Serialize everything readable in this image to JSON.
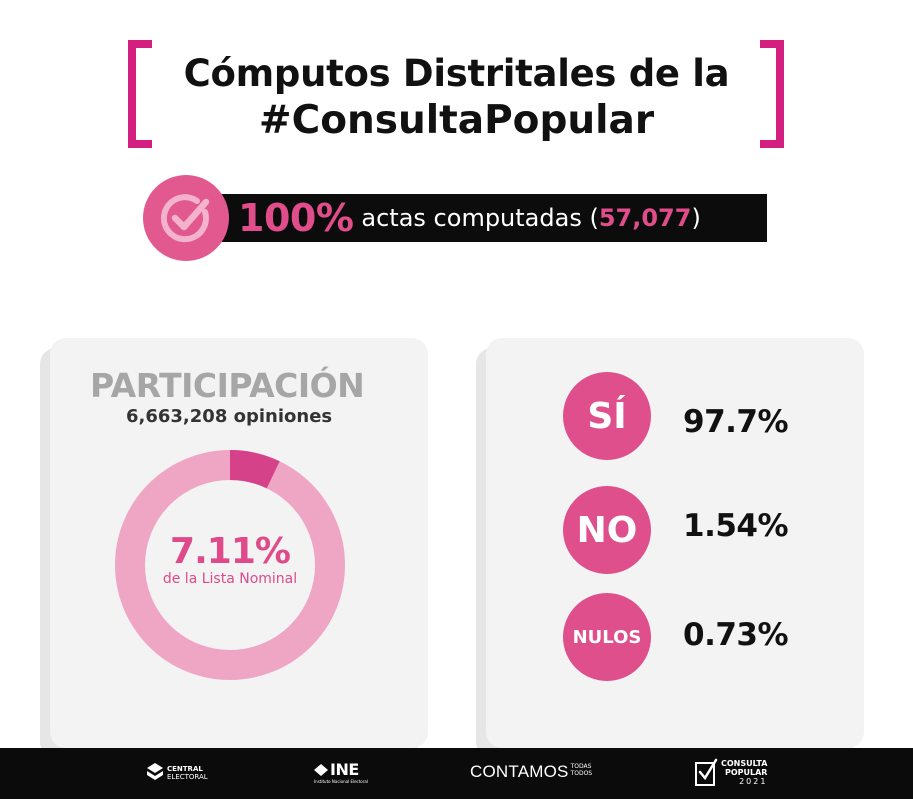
{
  "header": {
    "title_line1": "Cómputos Distritales de la",
    "title_line2": "#ConsultaPopular"
  },
  "actas": {
    "percent": "100%",
    "label": "actas computadas (",
    "count": "57,077",
    "close": ")",
    "icon": "check-circle-icon"
  },
  "participacion": {
    "title": "PARTICIPACIÓN",
    "opinions": "6,663,208 opiniones",
    "percent_label": "7.11%",
    "percent_value": 7.11,
    "caption": "de la Lista Nominal"
  },
  "results": [
    {
      "option": "SÍ",
      "value": "97.7%"
    },
    {
      "option": "NO",
      "value": "1.54%"
    },
    {
      "option": "NULOS",
      "value": "0.73%"
    }
  ],
  "footer": {
    "central_line1": "CENTRAL",
    "central_line2": "ELECTORAL",
    "ine": "INE",
    "ine_sub": "Instituto Nacional Electoral",
    "contamos": "CONTAMOS",
    "todas": "TODAS",
    "todos": "TODOS",
    "consulta_line1": "CONSULTA",
    "consulta_line2": "POPULAR",
    "consulta_year": "2021"
  },
  "colors": {
    "brand_pink": "#d31f7f",
    "accent_pink": "#de4f8b",
    "donut_light": "#efa6c4",
    "donut_dark": "#d6428a"
  }
}
